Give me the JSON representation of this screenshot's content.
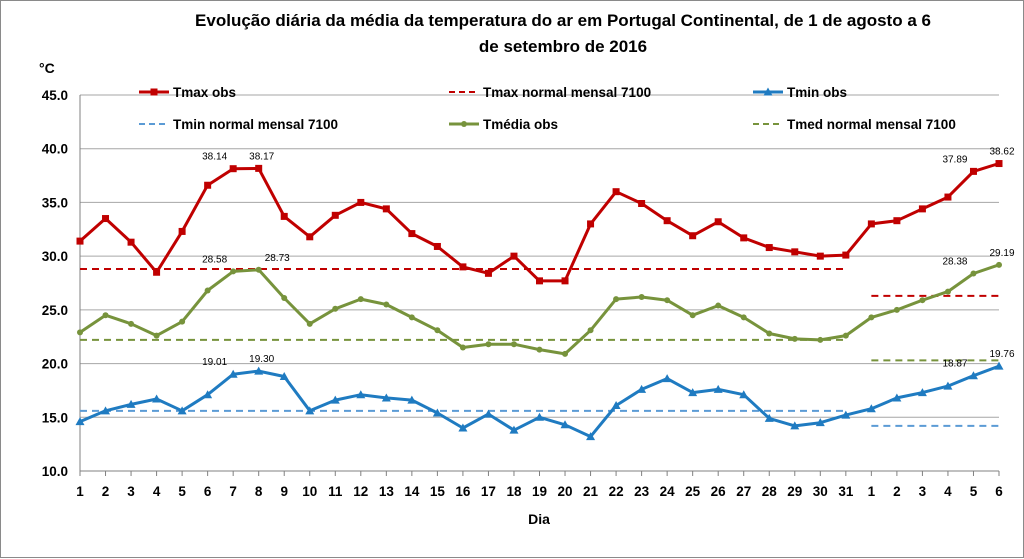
{
  "chart_data": {
    "type": "line",
    "title": [
      "Evolução diária da média da temperatura do ar em Portugal Continental, de 1 de agosto a 6",
      "de setembro de 2016"
    ],
    "xlabel": "Dia",
    "ylabel": "°C",
    "ylim": [
      10,
      45
    ],
    "ytick_labels": [
      "10.0",
      "15.0",
      "20.0",
      "25.0",
      "30.0",
      "35.0",
      "40.0",
      "45.0"
    ],
    "categories": [
      "1",
      "2",
      "3",
      "4",
      "5",
      "6",
      "7",
      "8",
      "9",
      "10",
      "11",
      "12",
      "13",
      "14",
      "15",
      "16",
      "17",
      "18",
      "19",
      "20",
      "21",
      "22",
      "23",
      "24",
      "25",
      "26",
      "27",
      "28",
      "29",
      "30",
      "31",
      "1",
      "2",
      "3",
      "4",
      "5",
      "6"
    ],
    "grid": true,
    "legend_position": "top",
    "series": [
      {
        "name": "Tmax obs",
        "color": "#C00000",
        "marker": "square",
        "values": [
          31.4,
          33.5,
          31.3,
          28.5,
          32.3,
          36.6,
          38.14,
          38.17,
          33.7,
          31.8,
          33.8,
          35.0,
          34.4,
          32.1,
          30.9,
          29.0,
          28.4,
          30.0,
          27.7,
          27.7,
          33.0,
          36.0,
          34.9,
          33.3,
          31.9,
          33.2,
          31.7,
          30.8,
          30.4,
          30.0,
          30.1,
          33.0,
          33.3,
          34.4,
          35.5,
          37.89,
          38.62
        ]
      },
      {
        "name": "Tmax normal mensal 7100",
        "color": "#C00000",
        "dashed": true,
        "segments": [
          {
            "from": 0,
            "to": 30,
            "value": 28.8
          },
          {
            "from": 31,
            "to": 36,
            "value": 26.3
          }
        ]
      },
      {
        "name": "Tmin obs",
        "color": "#1F7BC1",
        "marker": "triangle",
        "values": [
          14.6,
          15.6,
          16.2,
          16.7,
          15.6,
          17.1,
          19.01,
          19.3,
          18.8,
          15.6,
          16.6,
          17.1,
          16.8,
          16.6,
          15.4,
          14.0,
          15.3,
          13.8,
          15.0,
          14.3,
          13.2,
          16.1,
          17.6,
          18.6,
          17.3,
          17.6,
          17.1,
          14.9,
          14.2,
          14.5,
          15.2,
          15.8,
          16.8,
          17.3,
          17.9,
          18.87,
          19.76
        ]
      },
      {
        "name": "Tmin normal mensal 7100",
        "color": "#5B9BD5",
        "dashed": true,
        "segments": [
          {
            "from": 0,
            "to": 30,
            "value": 15.6
          },
          {
            "from": 31,
            "to": 36,
            "value": 14.2
          }
        ]
      },
      {
        "name": "Tmédia obs",
        "color": "#77933C",
        "marker": "circle",
        "values": [
          22.9,
          24.5,
          23.7,
          22.6,
          23.9,
          26.8,
          28.58,
          28.73,
          26.1,
          23.7,
          25.1,
          26.0,
          25.5,
          24.3,
          23.1,
          21.5,
          21.8,
          21.8,
          21.3,
          20.9,
          23.1,
          26.0,
          26.2,
          25.9,
          24.5,
          25.4,
          24.3,
          22.8,
          22.3,
          22.2,
          22.6,
          24.3,
          25.0,
          25.9,
          26.7,
          28.38,
          29.19
        ]
      },
      {
        "name": "Tmed normal mensal 7100",
        "color": "#77933C",
        "dashed": true,
        "segments": [
          {
            "from": 0,
            "to": 30,
            "value": 22.2
          },
          {
            "from": 31,
            "to": 36,
            "value": 20.3
          }
        ]
      }
    ],
    "annotations": [
      {
        "series": 0,
        "index": 6,
        "text": "38.14",
        "pos": "left"
      },
      {
        "series": 0,
        "index": 7,
        "text": "38.17",
        "pos": "above"
      },
      {
        "series": 0,
        "index": 35,
        "text": "37.89",
        "pos": "left"
      },
      {
        "series": 0,
        "index": 36,
        "text": "38.62",
        "pos": "above"
      },
      {
        "series": 4,
        "index": 6,
        "text": "28.58",
        "pos": "left"
      },
      {
        "series": 4,
        "index": 7,
        "text": "28.73",
        "pos": "right"
      },
      {
        "series": 4,
        "index": 35,
        "text": "28.38",
        "pos": "left"
      },
      {
        "series": 4,
        "index": 36,
        "text": "29.19",
        "pos": "above"
      },
      {
        "series": 2,
        "index": 6,
        "text": "19.01",
        "pos": "left"
      },
      {
        "series": 2,
        "index": 7,
        "text": "19.30",
        "pos": "above"
      },
      {
        "series": 2,
        "index": 35,
        "text": "18.87",
        "pos": "left"
      },
      {
        "series": 2,
        "index": 36,
        "text": "19.76",
        "pos": "above"
      }
    ]
  }
}
